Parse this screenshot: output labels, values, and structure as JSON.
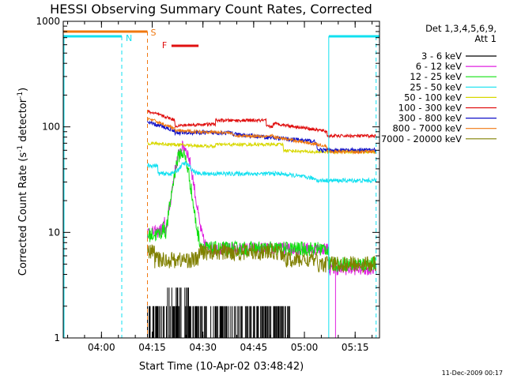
{
  "chart_data": {
    "type": "line",
    "title": "HESSI Observing Summary Count Rates, Corrected",
    "xlabel": "Start Time (10-Apr-02 03:48:42)",
    "ylabel_main": "Corrected Count Rate (s",
    "ylabel_sup1": "-1",
    "ylabel_mid": " detector",
    "ylabel_sup2": "-1",
    "ylabel_end": ")",
    "yscale": "log",
    "ylim": [
      1,
      1000
    ],
    "xlim_minutes_after_0348_42": [
      0,
      93.5
    ],
    "x_ticks": [
      {
        "label": "04:00",
        "t": 11.3
      },
      {
        "label": "04:15",
        "t": 26.3
      },
      {
        "label": "04:30",
        "t": 41.3
      },
      {
        "label": "04:45",
        "t": 56.3
      },
      {
        "label": "05:00",
        "t": 71.3
      },
      {
        "label": "05:15",
        "t": 86.3
      }
    ],
    "y_ticks": [
      {
        "label": "1",
        "v": 1
      },
      {
        "label": "10",
        "v": 10
      },
      {
        "label": "100",
        "v": 100
      },
      {
        "label": "1000",
        "v": 1000
      }
    ],
    "legend_header": [
      "Det 1,3,4,5,6,9,",
      "Att 1"
    ],
    "legend_placement": "right",
    "series": [
      {
        "name": "3 - 6 keV",
        "color": "#000000"
      },
      {
        "name": "6 - 12 keV",
        "color": "#e020e0"
      },
      {
        "name": "12 - 25 keV",
        "color": "#10e010"
      },
      {
        "name": "25 - 50 keV",
        "color": "#10e0f0"
      },
      {
        "name": "50 - 100 keV",
        "color": "#d8d800"
      },
      {
        "name": "100 - 300 keV",
        "color": "#e01010"
      },
      {
        "name": "300 - 800 keV",
        "color": "#1010c8"
      },
      {
        "name": "800 - 7000 keV",
        "color": "#f07810"
      },
      {
        "name": "7000 - 20000 keV",
        "color": "#808000"
      }
    ],
    "annotations": {
      "N_label": "N",
      "S_label": "S",
      "F_label": "F",
      "N_color": "#10e0f0",
      "S_color": "#f07810",
      "F_color": "#e01010",
      "night_intervals": [
        [
          0,
          17.3
        ],
        [
          78.5,
          93.5
        ]
      ],
      "saa_interval": [
        0,
        24.9
      ],
      "flare_interval": [
        32.0,
        40.0
      ]
    },
    "timestamp": "11-Dec-2009 00:17"
  }
}
